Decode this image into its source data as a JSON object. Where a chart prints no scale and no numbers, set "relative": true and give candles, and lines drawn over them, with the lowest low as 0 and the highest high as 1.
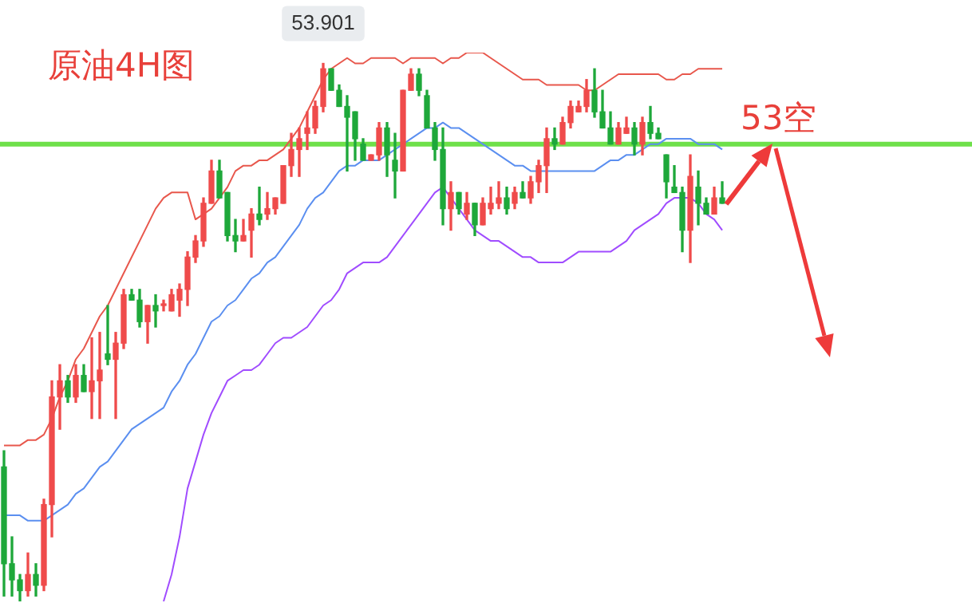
{
  "chart_data": {
    "type": "candlestick",
    "title": "原油4H图",
    "relative": true,
    "categories": [
      null,
      null,
      null,
      null,
      null,
      null,
      null,
      null,
      null,
      null,
      null,
      null,
      null,
      null,
      null,
      null,
      null,
      null,
      null,
      null,
      null,
      null,
      null,
      null,
      null,
      null,
      null,
      null,
      null,
      null,
      null,
      null,
      null,
      null,
      null,
      null,
      null,
      null,
      null,
      null,
      null,
      null,
      null,
      null,
      null,
      null,
      null,
      null,
      null,
      null,
      null,
      null,
      null,
      null,
      null,
      null,
      null,
      null,
      null,
      null,
      null,
      null,
      null,
      null,
      null,
      null,
      null,
      null,
      null,
      null,
      null,
      null,
      null,
      null,
      null,
      null,
      null,
      null,
      null,
      null,
      null,
      null,
      null,
      null,
      null,
      null,
      null,
      null,
      null,
      null,
      null
    ],
    "ohlc": [
      [
        0.25,
        0.28,
        0.01,
        0.07
      ],
      [
        0.07,
        0.12,
        0.01,
        0.04
      ],
      [
        0.04,
        0.05,
        0,
        0.02
      ],
      [
        0.02,
        0.09,
        0.01,
        0.05
      ],
      [
        0.05,
        0.07,
        0.01,
        0.03
      ],
      [
        0.03,
        0.19,
        0.02,
        0.18
      ],
      [
        0.18,
        0.41,
        0.12,
        0.38
      ],
      [
        0.38,
        0.44,
        0.32,
        0.41
      ],
      [
        0.41,
        0.42,
        0.37,
        0.38
      ],
      [
        0.38,
        0.44,
        0.37,
        0.42
      ],
      [
        0.42,
        0.44,
        0.39,
        0.39
      ],
      [
        0.39,
        0.49,
        0.34,
        0.41
      ],
      [
        0.41,
        0.5,
        0.34,
        0.43
      ],
      [
        0.46,
        0.55,
        0.44,
        0.45
      ],
      [
        0.45,
        0.5,
        0.34,
        0.48
      ],
      [
        0.48,
        0.58,
        0.47,
        0.57
      ],
      [
        0.57,
        0.58,
        0.56,
        0.56
      ],
      [
        0.56,
        0.58,
        0.51,
        0.52
      ],
      [
        0.52,
        0.55,
        0.48,
        0.55
      ],
      [
        0.55,
        0.57,
        0.51,
        0.54
      ],
      [
        0.55,
        0.56,
        0.54,
        0.55
      ],
      [
        0.54,
        0.58,
        0.54,
        0.57
      ],
      [
        0.56,
        0.59,
        0.53,
        0.58
      ],
      [
        0.58,
        0.65,
        0.55,
        0.64
      ],
      [
        0.64,
        0.68,
        0.63,
        0.67
      ],
      [
        0.67,
        0.75,
        0.66,
        0.74
      ],
      [
        0.74,
        0.82,
        0.74,
        0.8
      ],
      [
        0.8,
        0.82,
        0.75,
        0.75
      ],
      [
        0.76,
        0.76,
        0.67,
        0.68
      ],
      [
        0.68,
        0.71,
        0.65,
        0.67
      ],
      [
        0.67,
        0.71,
        0.67,
        0.68
      ],
      [
        0.69,
        0.73,
        0.64,
        0.72
      ],
      [
        0.72,
        0.77,
        0.7,
        0.71
      ],
      [
        0.72,
        0.76,
        0.71,
        0.73
      ],
      [
        0.73,
        0.75,
        0.72,
        0.75
      ],
      [
        0.74,
        0.81,
        0.74,
        0.81
      ],
      [
        0.81,
        0.87,
        0.79,
        0.84
      ],
      [
        0.84,
        0.88,
        0.79,
        0.86
      ],
      [
        0.87,
        0.91,
        0.84,
        0.88
      ],
      [
        0.88,
        0.93,
        0.87,
        0.92
      ],
      [
        0.92,
        1,
        0.91,
        0.99
      ],
      [
        0.99,
        0.99,
        0.95,
        0.95
      ],
      [
        0.95,
        0.96,
        0.92,
        0.92
      ],
      [
        0.92,
        0.94,
        0.8,
        0.9
      ],
      [
        0.91,
        0.91,
        0.82,
        0.86
      ],
      [
        0.85,
        0.86,
        0.82,
        0.82
      ],
      [
        0.82,
        0.83,
        0.82,
        0.83
      ],
      [
        0.83,
        0.89,
        0.82,
        0.88
      ],
      [
        0.88,
        0.89,
        0.79,
        0.83
      ],
      [
        0.82,
        0.87,
        0.75,
        0.8
      ],
      [
        0.8,
        0.95,
        0.8,
        0.95
      ],
      [
        0.95,
        0.99,
        0.95,
        0.98
      ],
      [
        0.98,
        0.99,
        0.94,
        0.95
      ],
      [
        0.94,
        0.95,
        0.88,
        0.88
      ],
      [
        0.88,
        0.89,
        0.82,
        0.84
      ],
      [
        0.84,
        0.88,
        0.7,
        0.73
      ],
      [
        0.73,
        0.78,
        0.69,
        0.76
      ],
      [
        0.76,
        0.76,
        0.72,
        0.73
      ],
      [
        0.72,
        0.76,
        0.71,
        0.74
      ],
      [
        0.74,
        0.74,
        0.68,
        0.7
      ],
      [
        0.7,
        0.75,
        0.7,
        0.74
      ],
      [
        0.73,
        0.77,
        0.72,
        0.74
      ],
      [
        0.74,
        0.78,
        0.73,
        0.75
      ],
      [
        0.75,
        0.77,
        0.72,
        0.73
      ],
      [
        0.74,
        0.77,
        0.73,
        0.76
      ],
      [
        0.76,
        0.78,
        0.75,
        0.75
      ],
      [
        0.75,
        0.79,
        0.74,
        0.78
      ],
      [
        0.78,
        0.82,
        0.76,
        0.81
      ],
      [
        0.81,
        0.88,
        0.76,
        0.86
      ],
      [
        0.86,
        0.88,
        0.84,
        0.85
      ],
      [
        0.85,
        0.9,
        0.85,
        0.89
      ],
      [
        0.89,
        0.93,
        0.88,
        0.92
      ],
      [
        0.91,
        0.93,
        0.91,
        0.92
      ],
      [
        0.92,
        0.97,
        0.91,
        0.95
      ],
      [
        0.95,
        0.99,
        0.9,
        0.91
      ],
      [
        0.91,
        0.95,
        0.88,
        0.88
      ],
      [
        0.88,
        0.91,
        0.85,
        0.85
      ],
      [
        0.85,
        0.89,
        0.85,
        0.88
      ],
      [
        0.87,
        0.9,
        0.87,
        0.88
      ],
      [
        0.88,
        0.89,
        0.83,
        0.85
      ],
      [
        0.85,
        0.9,
        0.83,
        0.89
      ],
      [
        0.89,
        0.92,
        0.86,
        0.87
      ],
      [
        0.87,
        0.88,
        0.86,
        0.86
      ],
      [
        0.83,
        0.83,
        0.75,
        0.78
      ],
      [
        0.77,
        0.81,
        0.76,
        0.76
      ],
      [
        0.76,
        0.77,
        0.65,
        0.69
      ],
      [
        0.69,
        0.83,
        0.63,
        0.79
      ],
      [
        0.77,
        0.8,
        0.7,
        0.74
      ],
      [
        0.74,
        0.75,
        0.72,
        0.72
      ],
      [
        0.72,
        0.77,
        0.72,
        0.75
      ],
      [
        0.75,
        0.78,
        0.74,
        0.74
      ]
    ],
    "colors": [
      "#1ea83a",
      "#1ea83a",
      "#1ea83a",
      "#ef4b4b",
      "#1ea83a",
      "#ef4b4b",
      "#ef4b4b",
      "#ef4b4b",
      "#1ea83a",
      "#ef4b4b",
      "#1ea83a",
      "#ef4b4b",
      "#ef4b4b",
      "#1ea83a",
      "#ef4b4b",
      "#ef4b4b",
      "#1ea83a",
      "#1ea83a",
      "#ef4b4b",
      "#1ea83a",
      "#ef4b4b",
      "#ef4b4b",
      "#ef4b4b",
      "#ef4b4b",
      "#ef4b4b",
      "#ef4b4b",
      "#ef4b4b",
      "#1ea83a",
      "#1ea83a",
      "#1ea83a",
      "#ef4b4b",
      "#ef4b4b",
      "#1ea83a",
      "#ef4b4b",
      "#ef4b4b",
      "#ef4b4b",
      "#ef4b4b",
      "#ef4b4b",
      "#ef4b4b",
      "#ef4b4b",
      "#ef4b4b",
      "#1ea83a",
      "#1ea83a",
      "#1ea83a",
      "#1ea83a",
      "#1ea83a",
      "#ef4b4b",
      "#ef4b4b",
      "#1ea83a",
      "#1ea83a",
      "#ef4b4b",
      "#ef4b4b",
      "#1ea83a",
      "#1ea83a",
      "#1ea83a",
      "#1ea83a",
      "#ef4b4b",
      "#1ea83a",
      "#ef4b4b",
      "#1ea83a",
      "#ef4b4b",
      "#ef4b4b",
      "#ef4b4b",
      "#1ea83a",
      "#ef4b4b",
      "#1ea83a",
      "#ef4b4b",
      "#ef4b4b",
      "#ef4b4b",
      "#1ea83a",
      "#ef4b4b",
      "#ef4b4b",
      "#ef4b4b",
      "#ef4b4b",
      "#1ea83a",
      "#1ea83a",
      "#1ea83a",
      "#ef4b4b",
      "#ef4b4b",
      "#1ea83a",
      "#ef4b4b",
      "#1ea83a",
      "#1ea83a",
      "#1ea83a",
      "#1ea83a",
      "#1ea83a",
      "#ef4b4b",
      "#1ea83a",
      "#1ea83a",
      "#ef4b4b",
      "#1ea83a"
    ],
    "series": [
      {
        "type": "line",
        "color": "#e8574c",
        "values": [
          0.29,
          0.29,
          0.29,
          0.3,
          0.3,
          0.31,
          0.34,
          0.38,
          0.41,
          0.45,
          0.47,
          0.5,
          0.53,
          0.55,
          0.58,
          0.61,
          0.64,
          0.67,
          0.7,
          0.73,
          0.75,
          0.76,
          0.76,
          0.76,
          0.71,
          0.72,
          0.73,
          0.75,
          0.77,
          0.8,
          0.81,
          0.81,
          0.82,
          0.82,
          0.83,
          0.84,
          0.86,
          0.88,
          0.91,
          0.94,
          0.97,
          0.99,
          1,
          1.01,
          1,
          1,
          1.01,
          1.01,
          1.01,
          1.01,
          1,
          1.01,
          1.01,
          1.01,
          1.01,
          1,
          1.01,
          1.01,
          1.02,
          1.02,
          1.02,
          1.01,
          1,
          0.99,
          0.98,
          0.97,
          0.97,
          0.97,
          0.96,
          0.96,
          0.96,
          0.96,
          0.96,
          0.95,
          0.95,
          0.96,
          0.97,
          0.98,
          0.98,
          0.98,
          0.98,
          0.98,
          0.98,
          0.97,
          0.97,
          0.98,
          0.98,
          0.99,
          0.99,
          0.99,
          0.99
        ]
      },
      {
        "type": "line",
        "color": "#5b8ff0",
        "values": [
          0.16,
          0.16,
          0.16,
          0.15,
          0.15,
          0.15,
          0.16,
          0.17,
          0.18,
          0.2,
          0.21,
          0.23,
          0.25,
          0.26,
          0.28,
          0.3,
          0.32,
          0.33,
          0.34,
          0.35,
          0.36,
          0.39,
          0.41,
          0.44,
          0.46,
          0.49,
          0.52,
          0.53,
          0.55,
          0.56,
          0.58,
          0.6,
          0.61,
          0.63,
          0.64,
          0.66,
          0.68,
          0.7,
          0.73,
          0.75,
          0.76,
          0.78,
          0.8,
          0.81,
          0.81,
          0.82,
          0.82,
          0.82,
          0.83,
          0.84,
          0.85,
          0.86,
          0.87,
          0.88,
          0.88,
          0.89,
          0.88,
          0.88,
          0.87,
          0.86,
          0.85,
          0.84,
          0.83,
          0.82,
          0.81,
          0.81,
          0.8,
          0.8,
          0.8,
          0.8,
          0.8,
          0.8,
          0.8,
          0.8,
          0.8,
          0.81,
          0.82,
          0.82,
          0.83,
          0.83,
          0.84,
          0.85,
          0.85,
          0.86,
          0.86,
          0.86,
          0.86,
          0.85,
          0.85,
          0.85,
          0.84
        ]
      },
      {
        "type": "line",
        "color": "#a04cff",
        "values": [
          null,
          null,
          null,
          null,
          null,
          null,
          null,
          null,
          null,
          null,
          null,
          null,
          null,
          null,
          null,
          null,
          null,
          null,
          null,
          null,
          0,
          0.05,
          0.12,
          0.21,
          0.26,
          0.31,
          0.35,
          0.38,
          0.41,
          0.42,
          0.43,
          0.43,
          0.44,
          0.46,
          0.48,
          0.49,
          0.49,
          0.5,
          0.51,
          0.53,
          0.55,
          0.56,
          0.58,
          0.61,
          0.62,
          0.63,
          0.63,
          0.63,
          0.64,
          0.66,
          0.68,
          0.7,
          0.72,
          0.74,
          0.76,
          0.77,
          0.75,
          0.73,
          0.71,
          0.69,
          0.68,
          0.67,
          0.67,
          0.66,
          0.65,
          0.64,
          0.64,
          0.63,
          0.63,
          0.63,
          0.63,
          0.64,
          0.65,
          0.65,
          0.65,
          0.65,
          0.65,
          0.66,
          0.67,
          0.69,
          0.7,
          0.71,
          0.72,
          0.74,
          0.75,
          0.75,
          0.75,
          0.74,
          0.72,
          0.71,
          0.69
        ]
      }
    ],
    "ref_lines": [
      {
        "axis": "y",
        "value": 0.85,
        "color": "#6ee04a"
      }
    ],
    "annotations": [
      "53空",
      {
        "text": "53.901",
        "y": 1
      }
    ]
  }
}
